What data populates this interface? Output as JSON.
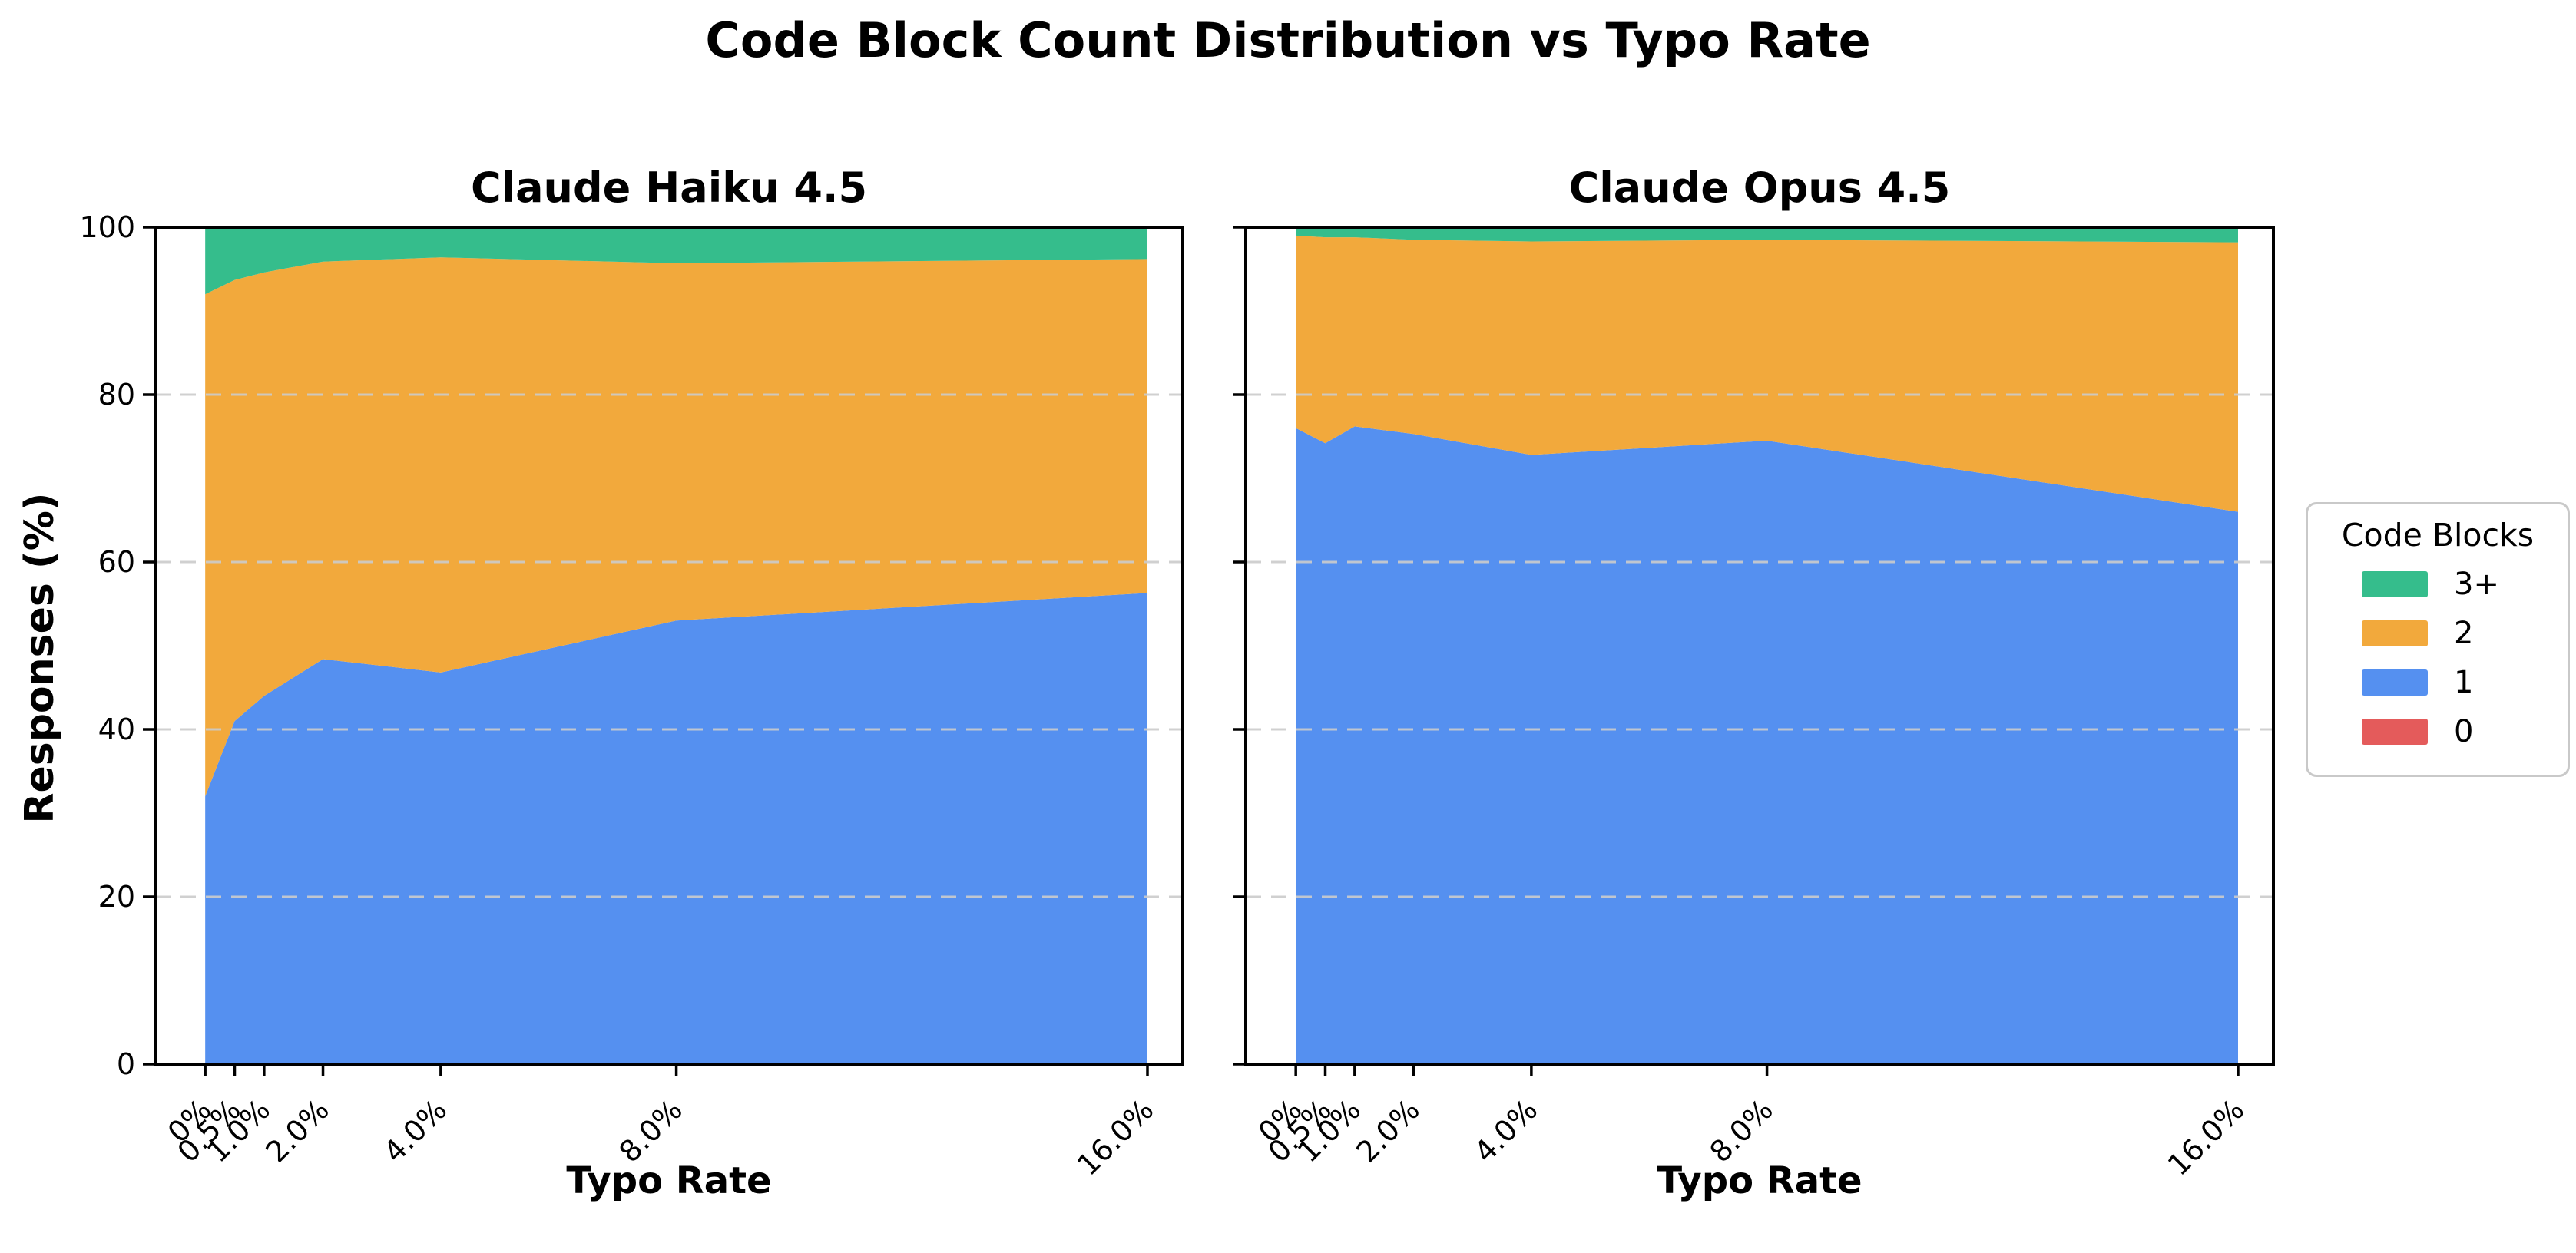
{
  "figure": {
    "suptitle": "Code Block Count Distribution vs Typo Rate",
    "background": "#ffffff"
  },
  "axes": {
    "xlabel": "Typo Rate",
    "ylabel": "Responses (%)",
    "y_ticks": [
      0,
      20,
      40,
      60,
      80,
      100
    ],
    "y_tick_labels": [
      "0",
      "20",
      "40",
      "60",
      "80",
      "100"
    ],
    "grid_values": [
      20,
      40,
      60,
      80
    ],
    "ylim": [
      0,
      100
    ],
    "xlim_data": [
      0,
      16
    ],
    "x_range_drawn": [
      -0.85,
      16.6
    ],
    "grid_color": "#cccccc",
    "spine_color": "#000000"
  },
  "legend": {
    "title": "Code Blocks",
    "position": "center right",
    "items": [
      {
        "label": "3+",
        "color": "#35BD8C"
      },
      {
        "label": "2",
        "color": "#F2A93C"
      },
      {
        "label": "1",
        "color": "#5590F0"
      },
      {
        "label": "0",
        "color": "#E45B5B"
      }
    ]
  },
  "chart_data": [
    {
      "type": "area",
      "stacked": true,
      "normalized_percent": true,
      "title": "Claude Haiku 4.5",
      "x": [
        0,
        0.5,
        1,
        2,
        4,
        8,
        16
      ],
      "x_tick_labels": [
        "0%",
        "0.5%",
        "1.0%",
        "2.0%",
        "4.0%",
        "8.0%",
        "16.0%"
      ],
      "series": [
        {
          "name": "0",
          "color": "#E45B5B",
          "values": [
            0,
            0,
            0,
            0,
            0,
            0,
            0
          ]
        },
        {
          "name": "1",
          "color": "#5590F0",
          "values": [
            32,
            41,
            44,
            48.4,
            46.8,
            53,
            56.3
          ]
        },
        {
          "name": "2",
          "color": "#F2A93C",
          "values": [
            60,
            52.7,
            50.6,
            47.5,
            49.6,
            42.7,
            39.9
          ]
        },
        {
          "name": "3+",
          "color": "#35BD8C",
          "values": [
            8,
            6.3,
            5.4,
            4.1,
            3.6,
            4.3,
            3.8
          ]
        }
      ]
    },
    {
      "type": "area",
      "stacked": true,
      "normalized_percent": true,
      "title": "Claude Opus 4.5",
      "x": [
        0,
        0.5,
        1,
        2,
        4,
        8,
        16
      ],
      "x_tick_labels": [
        "0%",
        "0.5%",
        "1.0%",
        "2.0%",
        "4.0%",
        "8.0%",
        "16.0%"
      ],
      "series": [
        {
          "name": "0",
          "color": "#E45B5B",
          "values": [
            0,
            0,
            0,
            0,
            0,
            0,
            0
          ]
        },
        {
          "name": "1",
          "color": "#5590F0",
          "values": [
            76,
            74.2,
            76.2,
            75.3,
            72.8,
            74.5,
            66
          ]
        },
        {
          "name": "2",
          "color": "#F2A93C",
          "values": [
            23,
            24.6,
            22.6,
            23.2,
            25.5,
            24,
            32.2
          ]
        },
        {
          "name": "3+",
          "color": "#35BD8C",
          "values": [
            1,
            1.2,
            1.2,
            1.5,
            1.7,
            1.5,
            1.8
          ]
        }
      ]
    }
  ]
}
